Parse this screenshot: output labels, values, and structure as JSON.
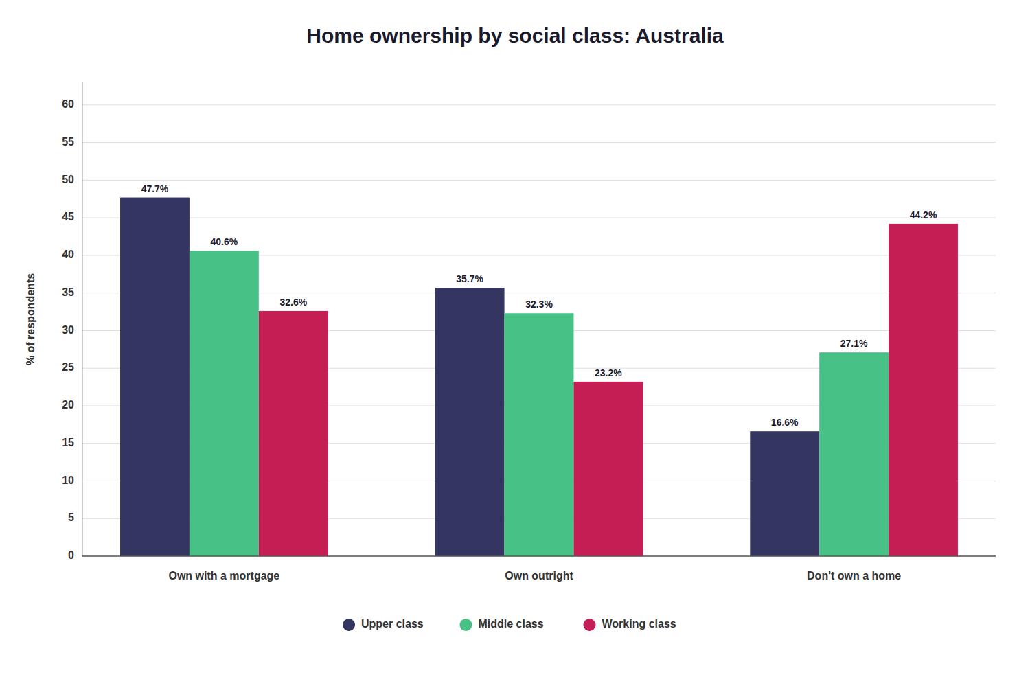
{
  "chart_data": {
    "type": "bar",
    "title": "Home ownership by social class: Australia",
    "ylabel": "% of respondents",
    "categories": [
      "Own with a mortgage",
      "Own outright",
      "Don't own a home"
    ],
    "series": [
      {
        "name": "Upper class",
        "color": "#343561",
        "values": [
          47.7,
          35.7,
          16.6
        ],
        "value_labels": [
          "47.7%",
          "35.7%",
          "16.6%"
        ]
      },
      {
        "name": "Middle class",
        "color": "#47C185",
        "values": [
          40.6,
          32.3,
          27.1
        ],
        "value_labels": [
          "40.6%",
          "32.3%",
          "27.1%"
        ]
      },
      {
        "name": "Working class",
        "color": "#C41E54",
        "values": [
          32.6,
          23.2,
          44.2
        ],
        "value_labels": [
          "32.6%",
          "23.2%",
          "44.2%"
        ]
      }
    ],
    "ylim": [
      0,
      63
    ],
    "yticks": [
      0,
      5,
      10,
      15,
      20,
      25,
      30,
      35,
      40,
      45,
      50,
      55,
      60
    ],
    "grid": true,
    "data_labels": true,
    "legend": "bottom"
  }
}
